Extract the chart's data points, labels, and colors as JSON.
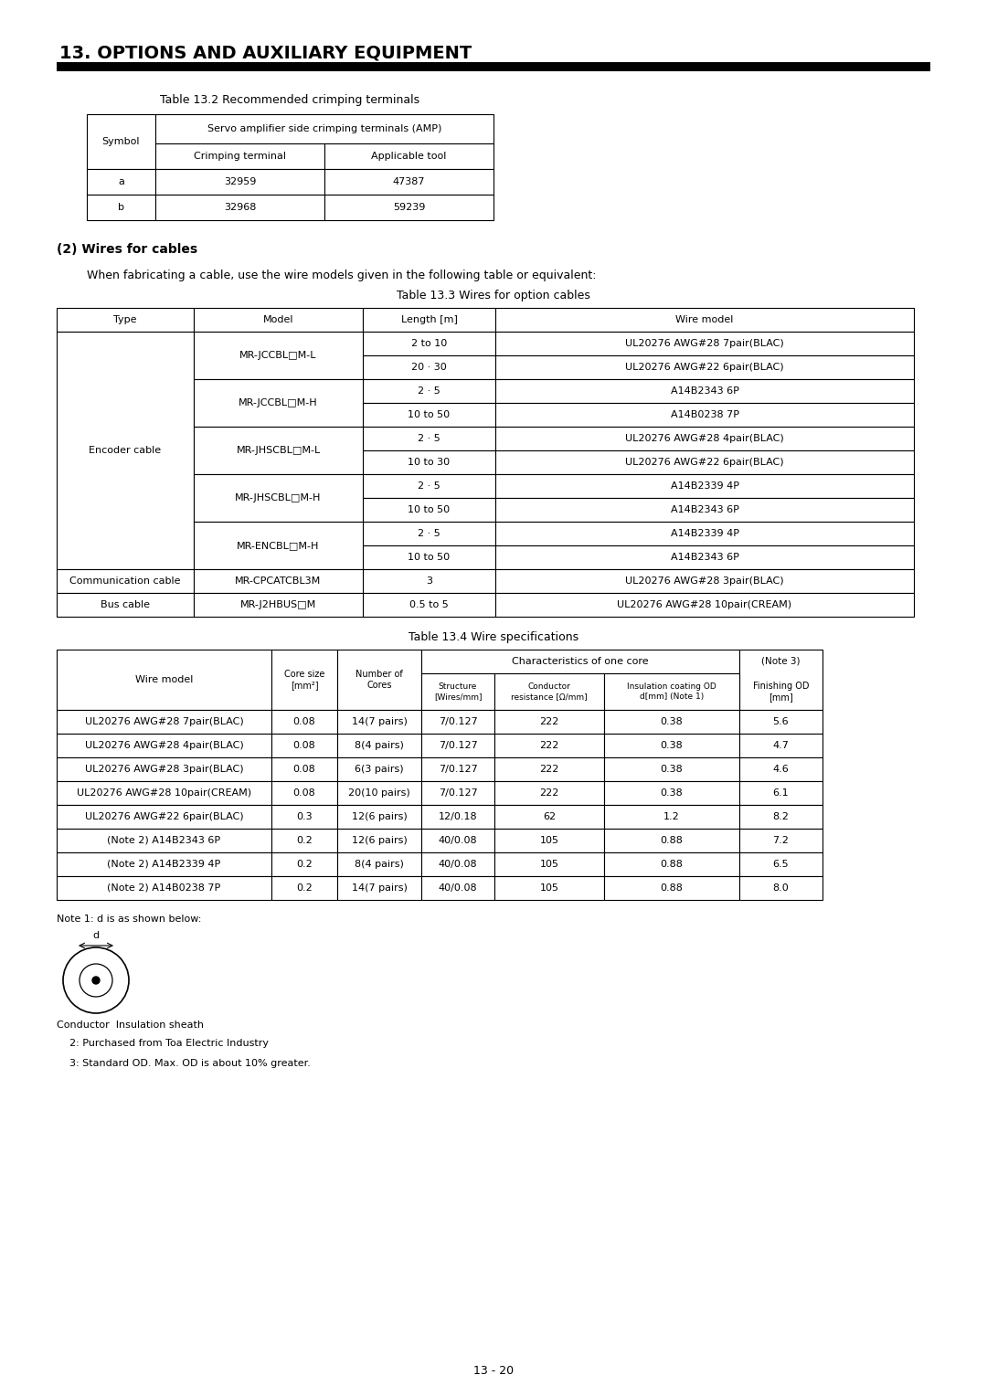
{
  "page_title": "13. OPTIONS AND AUXILIARY EQUIPMENT",
  "table1_title": "Table 13.2 Recommended crimping terminals",
  "table1_header1": "Symbol",
  "table1_header2": "Servo amplifier side crimping terminals (AMP)",
  "table1_subheader1": "Crimping terminal",
  "table1_subheader2": "Applicable tool",
  "table1_data": [
    [
      "a",
      "32959",
      "47387"
    ],
    [
      "b",
      "32968",
      "59239"
    ]
  ],
  "section2_title": "(2) Wires for cables",
  "section2_text": "When fabricating a cable, use the wire models given in the following table or equivalent:",
  "table2_title": "Table 13.3 Wires for option cables",
  "table2_headers": [
    "Type",
    "Model",
    "Length [m]",
    "Wire model"
  ],
  "table2_data": [
    [
      "Encoder cable",
      "MR-JCCBL□M-L",
      "2 to 10",
      "UL20276 AWG#28 7pair(BLAC)"
    ],
    [
      "",
      "",
      "20 · 30",
      "UL20276 AWG#22 6pair(BLAC)"
    ],
    [
      "",
      "MR-JCCBL□M-H",
      "2 · 5",
      "A14B2343 6P"
    ],
    [
      "",
      "",
      "10 to 50",
      "A14B0238 7P"
    ],
    [
      "",
      "MR-JHSCBL□M-L",
      "2 · 5",
      "UL20276 AWG#28 4pair(BLAC)"
    ],
    [
      "",
      "",
      "10 to 30",
      "UL20276 AWG#22 6pair(BLAC)"
    ],
    [
      "",
      "MR-JHSCBL□M-H",
      "2 · 5",
      "A14B2339 4P"
    ],
    [
      "",
      "",
      "10 to 50",
      "A14B2343 6P"
    ],
    [
      "",
      "MR-ENCBL□M-H",
      "2 · 5",
      "A14B2339 4P"
    ],
    [
      "",
      "",
      "10 to 50",
      "A14B2343 6P"
    ],
    [
      "Communication cable",
      "MR-CPCATCBL3M",
      "3",
      "UL20276 AWG#28 3pair(BLAC)"
    ],
    [
      "Bus cable",
      "MR-J2HBUS□M",
      "0.5 to 5",
      "UL20276 AWG#28 10pair(CREAM)"
    ]
  ],
  "table3_title": "Table 13.4 Wire specifications",
  "table3_data": [
    [
      "UL20276 AWG#28 7pair(BLAC)",
      "0.08",
      "14(7 pairs)",
      "7/0.127",
      "222",
      "0.38",
      "5.6"
    ],
    [
      "UL20276 AWG#28 4pair(BLAC)",
      "0.08",
      "8(4 pairs)",
      "7/0.127",
      "222",
      "0.38",
      "4.7"
    ],
    [
      "UL20276 AWG#28 3pair(BLAC)",
      "0.08",
      "6(3 pairs)",
      "7/0.127",
      "222",
      "0.38",
      "4.6"
    ],
    [
      "UL20276 AWG#28 10pair(CREAM)",
      "0.08",
      "20(10 pairs)",
      "7/0.127",
      "222",
      "0.38",
      "6.1"
    ],
    [
      "UL20276 AWG#22 6pair(BLAC)",
      "0.3",
      "12(6 pairs)",
      "12/0.18",
      "62",
      "1.2",
      "8.2"
    ],
    [
      "(Note 2) A14B2343 6P",
      "0.2",
      "12(6 pairs)",
      "40/0.08",
      "105",
      "0.88",
      "7.2"
    ],
    [
      "(Note 2) A14B2339 4P",
      "0.2",
      "8(4 pairs)",
      "40/0.08",
      "105",
      "0.88",
      "6.5"
    ],
    [
      "(Note 2) A14B0238 7P",
      "0.2",
      "14(7 pairs)",
      "40/0.08",
      "105",
      "0.88",
      "8.0"
    ]
  ],
  "note1": "Note 1: d is as shown below:",
  "note2": "    2: Purchased from Toa Electric Industry",
  "note3": "    3: Standard OD. Max. OD is about 10% greater.",
  "page_number": "13 - 20",
  "bg_color": "#ffffff",
  "text_color": "#000000",
  "line_color": "#000000"
}
